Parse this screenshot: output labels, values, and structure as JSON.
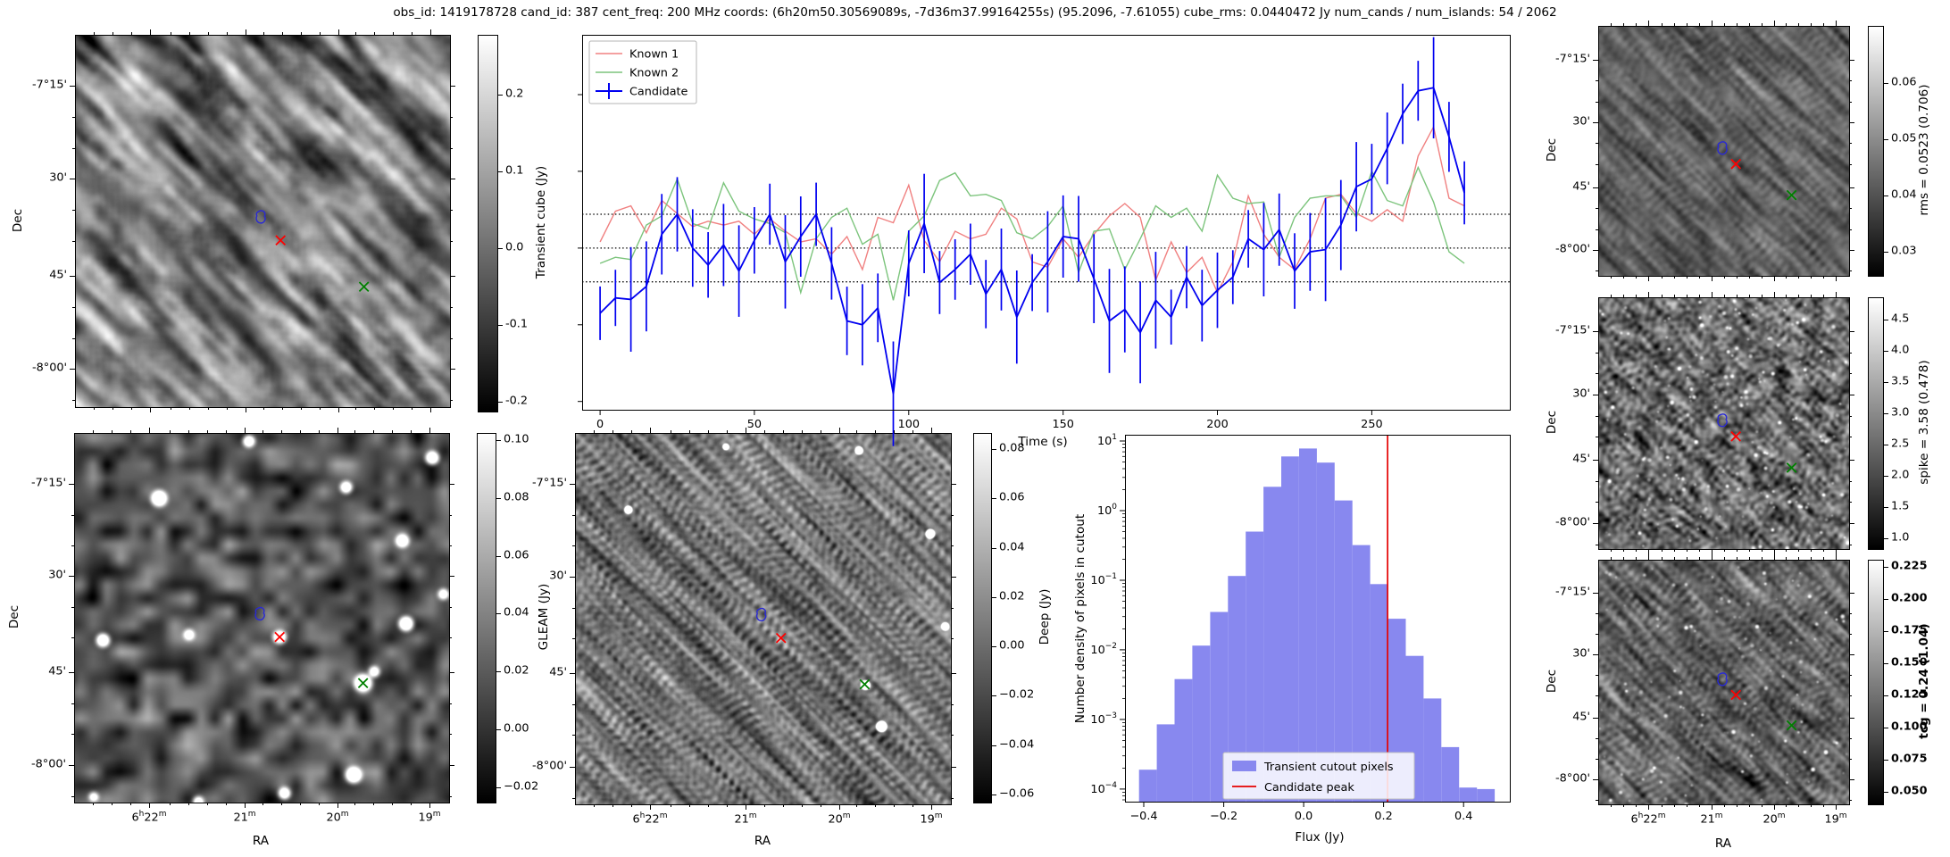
{
  "figure": {
    "title": "obs_id: 1419178728 cand_id: 387 cent_freq: 200 MHz coords: (6h20m50.30569089s, -7d36m37.99164255s) (95.2096, -7.61055) cube_rms: 0.0440472 Jy num_cands / num_islands: 54 / 2062"
  },
  "axis_labels": {
    "dec": "Dec",
    "ra": "RA"
  },
  "image_panels": {
    "transient_cube": {
      "dec_ticks": [
        "-7°15'",
        "30'",
        "45'",
        "-8°00'"
      ],
      "ra_ticks": [],
      "has_ra_labels": false
    },
    "gleam": {
      "dec_ticks": [
        "-7°15'",
        "30'",
        "45'",
        "-8°00'"
      ],
      "ra_ticks": [
        "6h22m",
        "21m",
        "20m",
        "19m"
      ],
      "has_ra_labels": true,
      "sources": [
        [
          0.225,
          0.175,
          11
        ],
        [
          0.075,
          0.56,
          9
        ],
        [
          0.305,
          0.545,
          7
        ],
        [
          0.465,
          0.02,
          8
        ],
        [
          0.725,
          0.145,
          8
        ],
        [
          0.875,
          0.29,
          9
        ],
        [
          0.955,
          0.065,
          9
        ],
        [
          0.885,
          0.515,
          10
        ],
        [
          0.547,
          0.551,
          9
        ],
        [
          0.77,
          0.676,
          12
        ],
        [
          0.8,
          0.645,
          7
        ],
        [
          0.745,
          0.925,
          11
        ],
        [
          0.56,
          0.975,
          8
        ],
        [
          0.985,
          0.435,
          7
        ],
        [
          0.33,
          0.998,
          7
        ],
        [
          0.05,
          0.985,
          6
        ]
      ]
    },
    "deep": {
      "dec_ticks": [
        "-7°15'",
        "30'",
        "45'",
        "-8°00'"
      ],
      "ra_ticks": [
        "6h22m",
        "21m",
        "20m",
        "19m"
      ],
      "has_ra_labels": true,
      "sources": [
        [
          0.14,
          0.205,
          5
        ],
        [
          0.755,
          0.045,
          5
        ],
        [
          0.945,
          0.27,
          6
        ],
        [
          0.815,
          0.79,
          7
        ],
        [
          0.4,
          0.035,
          4
        ],
        [
          0.772,
          0.678,
          6
        ],
        [
          0.985,
          0.52,
          5
        ]
      ]
    },
    "rms": {
      "dec_ticks": [
        "-7°15'",
        "30'",
        "45'",
        "-8°00'"
      ],
      "ra_ticks": [],
      "has_ra_labels": false
    },
    "spike": {
      "dec_ticks": [
        "-7°15'",
        "30'",
        "45'",
        "-8°00'"
      ],
      "ra_ticks": [],
      "has_ra_labels": false
    },
    "tcg": {
      "dec_ticks": [
        "-7°15'",
        "30'",
        "45'",
        "-8°00'"
      ],
      "ra_ticks": [
        "6h22m",
        "21m",
        "20m",
        "19m"
      ],
      "has_ra_labels": true
    }
  },
  "markers": {
    "candidate_contour": {
      "color": "#2a2ad4",
      "x": 0.497,
      "y": 0.49
    },
    "candidate_position": {
      "color": "#ff0000",
      "x": 0.547,
      "y": 0.551,
      "shape": "x"
    },
    "known_source": {
      "color": "#008000",
      "x": 0.77,
      "y": 0.676,
      "shape": "x"
    }
  },
  "colorbars": {
    "transient_cube": {
      "label": "Transient cube (Jy)",
      "ticks": [
        "0.2",
        "0.1",
        "0.0",
        "-0.1",
        "-0.2"
      ],
      "tick_vals": [
        0.2,
        0.1,
        0.0,
        -0.1,
        -0.2
      ],
      "vmin": -0.212,
      "vmax": 0.278,
      "bold": false
    },
    "gleam": {
      "label": "GLEAM (Jy)",
      "ticks": [
        "0.10",
        "0.08",
        "0.06",
        "0.04",
        "0.02",
        "0.00",
        "−0.02"
      ],
      "tick_vals": [
        0.1,
        0.08,
        0.06,
        0.04,
        0.02,
        0.0,
        -0.02
      ],
      "vmin": -0.025,
      "vmax": 0.1025,
      "bold": false
    },
    "deep": {
      "label": "Deep (Jy)",
      "ticks": [
        "0.08",
        "0.06",
        "0.04",
        "0.02",
        "0.00",
        "−0.02",
        "−0.04",
        "−0.06"
      ],
      "tick_vals": [
        0.08,
        0.06,
        0.04,
        0.02,
        0.0,
        -0.02,
        -0.04,
        -0.06
      ],
      "vmin": -0.0629,
      "vmax": 0.0865,
      "bold": false
    },
    "rms": {
      "label": "rms = 0.0523 (0.706)",
      "ticks": [
        "0.06",
        "0.05",
        "0.04",
        "0.03"
      ],
      "tick_vals": [
        0.06,
        0.05,
        0.04,
        0.03
      ],
      "vmin": 0.0259,
      "vmax": 0.0702,
      "bold": false
    },
    "spike": {
      "label": "spike = 3.58 (0.478)",
      "ticks": [
        "4.5",
        "4.0",
        "3.5",
        "3.0",
        "2.5",
        "2.0",
        "1.5",
        "1.0"
      ],
      "tick_vals": [
        4.5,
        4.0,
        3.5,
        3.0,
        2.5,
        2.0,
        1.5,
        1.0
      ],
      "vmin": 0.843,
      "vmax": 4.857,
      "bold": false
    },
    "tcg": {
      "label": "tcg = 0.24 (1.04)",
      "ticks": [
        "0.225",
        "0.200",
        "0.175",
        "0.150",
        "0.125",
        "0.100",
        "0.075",
        "0.050"
      ],
      "tick_vals": [
        0.225,
        0.2,
        0.175,
        0.15,
        0.125,
        0.1,
        0.075,
        0.05
      ],
      "vmin": 0.041,
      "vmax": 0.2306,
      "bold": true
    }
  },
  "chart_data": [
    {
      "type": "line",
      "title": "",
      "xlabel": "Time (s)",
      "ylabel": "Transient cube (Jy)",
      "xlim": [
        -5.8,
        295
      ],
      "ylim": [
        -0.212,
        0.278
      ],
      "xticks": [
        0,
        50,
        100,
        150,
        200,
        250
      ],
      "ytick_vals": [
        0.2,
        0.1,
        0.0,
        -0.1,
        -0.2
      ],
      "hlines": [
        0.0440472,
        0.0,
        -0.0440472
      ],
      "legend_position": "upper left",
      "x": [
        0,
        5,
        10,
        15,
        20,
        25,
        30,
        35,
        40,
        45,
        50,
        55,
        60,
        65,
        70,
        75,
        80,
        85,
        90,
        95,
        100,
        105,
        110,
        115,
        120,
        125,
        130,
        135,
        140,
        145,
        150,
        155,
        160,
        165,
        170,
        175,
        180,
        185,
        190,
        195,
        200,
        205,
        210,
        215,
        220,
        225,
        230,
        235,
        240,
        245,
        250,
        255,
        260,
        265,
        270,
        275,
        280
      ],
      "series": [
        {
          "name": "Known 1",
          "color": "#f08080",
          "values": [
            0.008,
            0.048,
            0.055,
            0.02,
            0.062,
            0.045,
            0.028,
            0.035,
            0.03,
            0.035,
            0.018,
            0.038,
            0.022,
            0.008,
            0.012,
            -0.008,
            0.015,
            -0.028,
            0.04,
            0.033,
            0.082,
            0.01,
            -0.018,
            0.022,
            0.012,
            0.018,
            0.052,
            0.038,
            -0.018,
            -0.025,
            0.012,
            -0.012,
            0.018,
            0.042,
            0.058,
            0.04,
            -0.042,
            0.008,
            -0.032,
            -0.012,
            -0.058,
            -0.018,
            0.068,
            0.018,
            -0.012,
            -0.028,
            0.012,
            0.065,
            0.07,
            0.045,
            0.035,
            0.05,
            0.035,
            0.12,
            0.158,
            0.065,
            0.055
          ]
        },
        {
          "name": "Known 2",
          "color": "#7cc47c",
          "values": [
            -0.02,
            -0.012,
            -0.015,
            0.03,
            0.042,
            0.09,
            0.032,
            0.025,
            0.085,
            0.048,
            0.038,
            0.032,
            0.02,
            -0.058,
            0.012,
            0.04,
            0.052,
            0.005,
            0.018,
            -0.068,
            0.022,
            0.042,
            0.088,
            0.098,
            0.068,
            0.07,
            0.062,
            0.02,
            0.012,
            0.028,
            0.055,
            -0.032,
            0.022,
            0.025,
            -0.028,
            0.012,
            0.055,
            0.04,
            0.052,
            0.022,
            0.095,
            0.065,
            0.058,
            0.06,
            -0.012,
            0.04,
            0.065,
            0.068,
            0.068,
            0.04,
            0.1,
            0.062,
            0.055,
            0.105,
            0.06,
            -0.005,
            -0.02
          ]
        },
        {
          "name": "Candidate",
          "color": "#0000f0",
          "yerr": 0.046,
          "values": [
            -0.085,
            -0.065,
            -0.067,
            -0.05,
            0.018,
            0.044,
            0.0,
            -0.022,
            0.004,
            -0.03,
            0.01,
            0.044,
            -0.018,
            0.015,
            0.044,
            -0.02,
            -0.095,
            -0.1,
            -0.078,
            -0.19,
            -0.02,
            0.032,
            -0.045,
            -0.028,
            -0.008,
            -0.06,
            -0.028,
            -0.09,
            -0.045,
            -0.018,
            0.015,
            0.012,
            -0.04,
            -0.095,
            -0.08,
            -0.11,
            -0.068,
            -0.09,
            -0.038,
            -0.075,
            -0.055,
            -0.038,
            0.012,
            -0.002,
            0.024,
            -0.03,
            -0.005,
            -0.002,
            0.03,
            0.08,
            0.09,
            0.13,
            0.175,
            0.205,
            0.209,
            0.145,
            0.072
          ]
        }
      ]
    },
    {
      "type": "bar",
      "title": "",
      "xlabel": "Flux (Jy)",
      "ylabel": "Number density of pixels in cutout",
      "xlim": [
        -0.447,
        0.518
      ],
      "ylog": true,
      "ylim": [
        6.4e-05,
        12.3
      ],
      "xticks": [
        -0.4,
        -0.2,
        0.0,
        0.2,
        0.4
      ],
      "ytick_exponents": [
        1,
        0,
        -1,
        -2,
        -3,
        -4
      ],
      "bin_start": -0.412,
      "bin_width": 0.0445,
      "values": [
        0.00019,
        0.00085,
        0.0038,
        0.0115,
        0.035,
        0.115,
        0.5,
        2.2,
        6.0,
        7.8,
        4.9,
        1.4,
        0.32,
        0.088,
        0.028,
        0.0082,
        0.002,
        0.0004,
        0.000105,
        0.0001
      ],
      "candidate_peak": 0.21,
      "fill_color": "#8888ef",
      "peak_color": "#e50000",
      "legend": [
        "Transient cutout pixels",
        "Candidate peak"
      ]
    }
  ]
}
